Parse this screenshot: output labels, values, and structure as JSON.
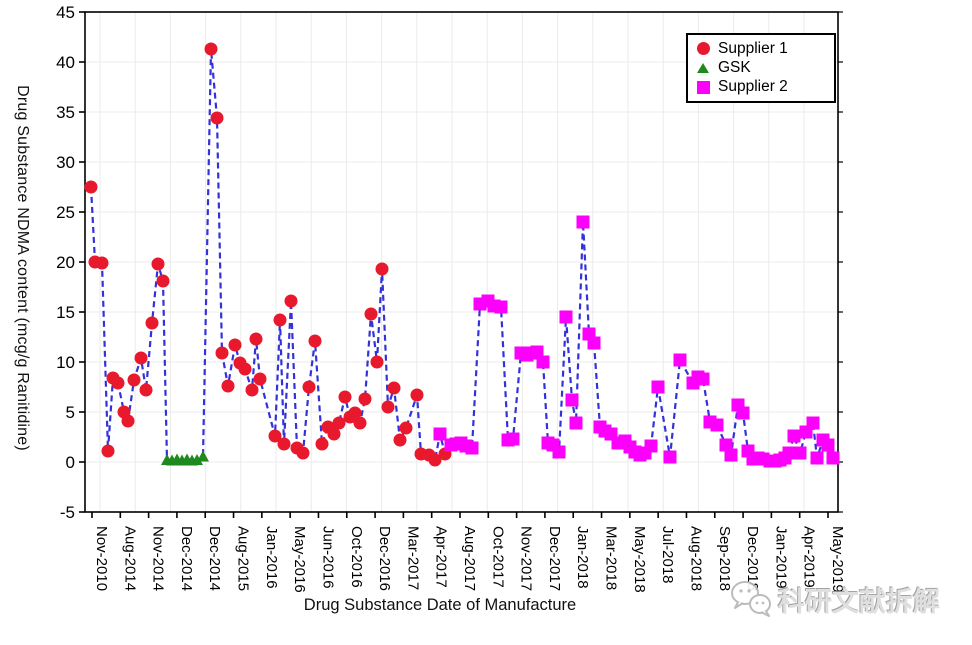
{
  "chart_data": {
    "type": "scatter",
    "title": "",
    "xlabel": "Drug Substance Date of Manufacture",
    "ylabel": "Drug Substance NDMA content (mcg/g Ranitidine)",
    "ylim": [
      -5,
      45
    ],
    "yticks": [
      -5,
      0,
      5,
      10,
      15,
      20,
      25,
      30,
      35,
      40,
      45
    ],
    "xticklabels": [
      "Nov-2010",
      "Aug-2014",
      "Nov-2014",
      "Dec-2014",
      "Dec-2014",
      "Aug-2015",
      "Jan-2016",
      "May-2016",
      "Jun-2016",
      "Oct-2016",
      "Dec-2016",
      "Mar-2017",
      "Apr-2017",
      "Aug-2017",
      "Oct-2017",
      "Nov-2017",
      "Dec-2017",
      "Jan-2018",
      "Mar-2018",
      "May-2018",
      "Jul-2018",
      "Aug-2018",
      "Sep-2018",
      "Dec-2018",
      "Jan-2019",
      "Apr-2019",
      "May-2019"
    ],
    "grid": true,
    "connector_line": {
      "style": "dashed",
      "color": "#3232d8",
      "note": "single dashed blue line connecting all points in date order"
    },
    "grid_color": "#ebebeb",
    "legend_position": "top-right",
    "legend": [
      "Supplier 1",
      "GSK",
      "Supplier 2"
    ],
    "series": [
      {
        "name": "Supplier 1",
        "marker": "circle",
        "color": "#e8192c",
        "points": [
          [
            91,
            27.5
          ],
          [
            95,
            20.0
          ],
          [
            102,
            19.9
          ],
          [
            108,
            1.1
          ],
          [
            113,
            8.4
          ],
          [
            118,
            7.9
          ],
          [
            124,
            5.0
          ],
          [
            128,
            4.1
          ],
          [
            134,
            8.2
          ],
          [
            141,
            10.4
          ],
          [
            146,
            7.2
          ],
          [
            152,
            13.9
          ],
          [
            158,
            19.8
          ],
          [
            163,
            18.1
          ],
          [
            211,
            41.3
          ],
          [
            217,
            34.4
          ],
          [
            222,
            10.9
          ],
          [
            228,
            7.6
          ],
          [
            235,
            11.7
          ],
          [
            240,
            9.9
          ],
          [
            245,
            9.3
          ],
          [
            252,
            7.2
          ],
          [
            256,
            12.3
          ],
          [
            260,
            8.3
          ],
          [
            275,
            2.6
          ],
          [
            280,
            14.2
          ],
          [
            284,
            1.8
          ],
          [
            291,
            16.1
          ],
          [
            297,
            1.4
          ],
          [
            303,
            0.9
          ],
          [
            309,
            7.5
          ],
          [
            315,
            12.1
          ],
          [
            322,
            1.8
          ],
          [
            328,
            3.5
          ],
          [
            334,
            2.8
          ],
          [
            339,
            3.9
          ],
          [
            345,
            6.5
          ],
          [
            350,
            4.5
          ],
          [
            355,
            4.9
          ],
          [
            360,
            3.9
          ],
          [
            365,
            6.3
          ],
          [
            371,
            14.8
          ],
          [
            377,
            10.0
          ],
          [
            382,
            19.3
          ],
          [
            388,
            5.5
          ],
          [
            394,
            7.4
          ],
          [
            400,
            2.2
          ],
          [
            406,
            3.4
          ],
          [
            417,
            6.7
          ],
          [
            421,
            0.8
          ],
          [
            429,
            0.7
          ],
          [
            435,
            0.2
          ],
          [
            445,
            0.8
          ]
        ]
      },
      {
        "name": "GSK",
        "marker": "triangle",
        "color": "#1e8a1e",
        "points": [
          [
            167,
            0.15
          ],
          [
            172,
            0.1
          ],
          [
            177,
            0.2
          ],
          [
            182,
            0.1
          ],
          [
            187,
            0.2
          ],
          [
            192,
            0.1
          ],
          [
            197,
            0.15
          ],
          [
            203,
            0.5
          ]
        ]
      },
      {
        "name": "Supplier 2",
        "marker": "square",
        "color": "#fb00fb",
        "points": [
          [
            440,
            2.8
          ],
          [
            451,
            1.7
          ],
          [
            456,
            1.8
          ],
          [
            461,
            1.9
          ],
          [
            466,
            1.6
          ],
          [
            472,
            1.4
          ],
          [
            480,
            15.8
          ],
          [
            488,
            16.1
          ],
          [
            494,
            15.6
          ],
          [
            501,
            15.5
          ],
          [
            508,
            2.2
          ],
          [
            513,
            2.3
          ],
          [
            521,
            10.9
          ],
          [
            527,
            10.7
          ],
          [
            532,
            10.9
          ],
          [
            537,
            11.0
          ],
          [
            543,
            10.0
          ],
          [
            548,
            1.9
          ],
          [
            553,
            1.7
          ],
          [
            559,
            1.0
          ],
          [
            566,
            14.5
          ],
          [
            572,
            6.2
          ],
          [
            576,
            3.9
          ],
          [
            583,
            24.0
          ],
          [
            589,
            12.8
          ],
          [
            594,
            11.9
          ],
          [
            600,
            3.5
          ],
          [
            605,
            3.1
          ],
          [
            611,
            2.8
          ],
          [
            618,
            1.9
          ],
          [
            625,
            2.1
          ],
          [
            630,
            1.5
          ],
          [
            635,
            1.0
          ],
          [
            640,
            0.7
          ],
          [
            645,
            0.9
          ],
          [
            651,
            1.6
          ],
          [
            658,
            7.5
          ],
          [
            670,
            0.5
          ],
          [
            680,
            10.2
          ],
          [
            693,
            7.9
          ],
          [
            698,
            8.5
          ],
          [
            703,
            8.3
          ],
          [
            710,
            4.0
          ],
          [
            717,
            3.7
          ],
          [
            726,
            1.7
          ],
          [
            731,
            0.7
          ],
          [
            738,
            5.7
          ],
          [
            743,
            4.9
          ],
          [
            748,
            1.1
          ],
          [
            753,
            0.3
          ],
          [
            758,
            0.4
          ],
          [
            763,
            0.3
          ],
          [
            770,
            0.1
          ],
          [
            775,
            0.1
          ],
          [
            780,
            0.2
          ],
          [
            785,
            0.4
          ],
          [
            789,
            0.9
          ],
          [
            794,
            2.6
          ],
          [
            800,
            0.9
          ],
          [
            806,
            3.0
          ],
          [
            813,
            3.9
          ],
          [
            817,
            0.4
          ],
          [
            823,
            2.2
          ],
          [
            828,
            1.7
          ],
          [
            833,
            0.4
          ]
        ]
      }
    ],
    "x_axis_note": "x values are screen positions along the date-of-manufacture axis (irregularly spaced batches); tick labels mark dates listed in xticklabels"
  },
  "watermark": {
    "text": "科研文献拆解",
    "icon": "wechat-chat-bubbles"
  }
}
